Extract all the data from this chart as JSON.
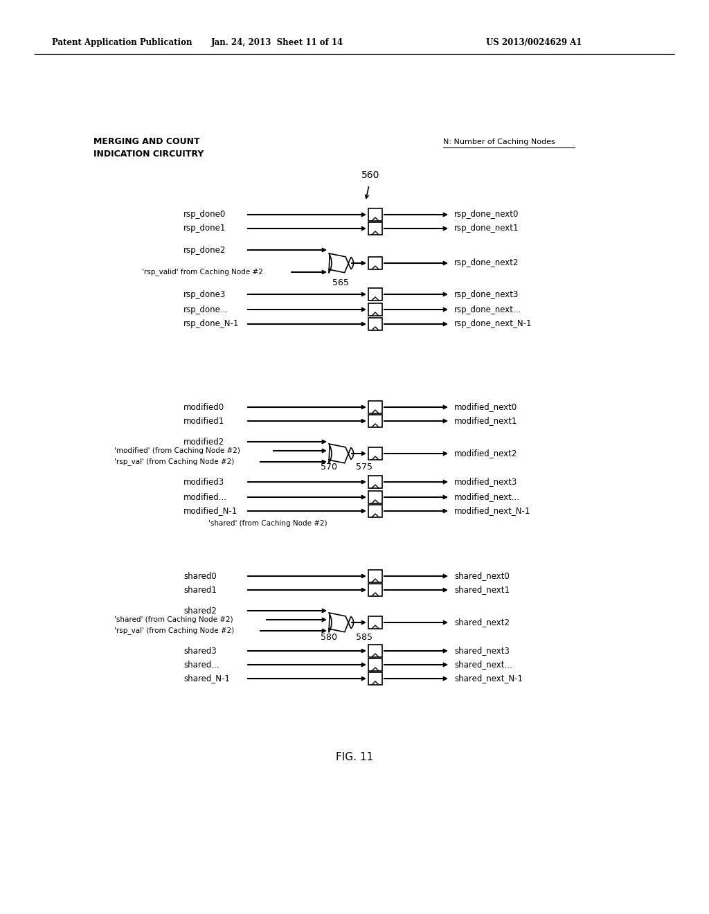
{
  "header_left": "Patent Application Publication",
  "header_center": "Jan. 24, 2013  Sheet 11 of 14",
  "header_right": "US 2013/0024629 A1",
  "label_merging1": "MERGING AND COUNT",
  "label_merging2": "INDICATION CIRCUITRY",
  "label_N": "N: Number of Caching Nodes",
  "label_560": "560",
  "label_565": "565",
  "label_570": "570",
  "label_575": "575",
  "label_580": "580",
  "label_585": "585",
  "fig_label": "FIG. 11",
  "bg_color": "#ffffff",
  "line_color": "#000000"
}
